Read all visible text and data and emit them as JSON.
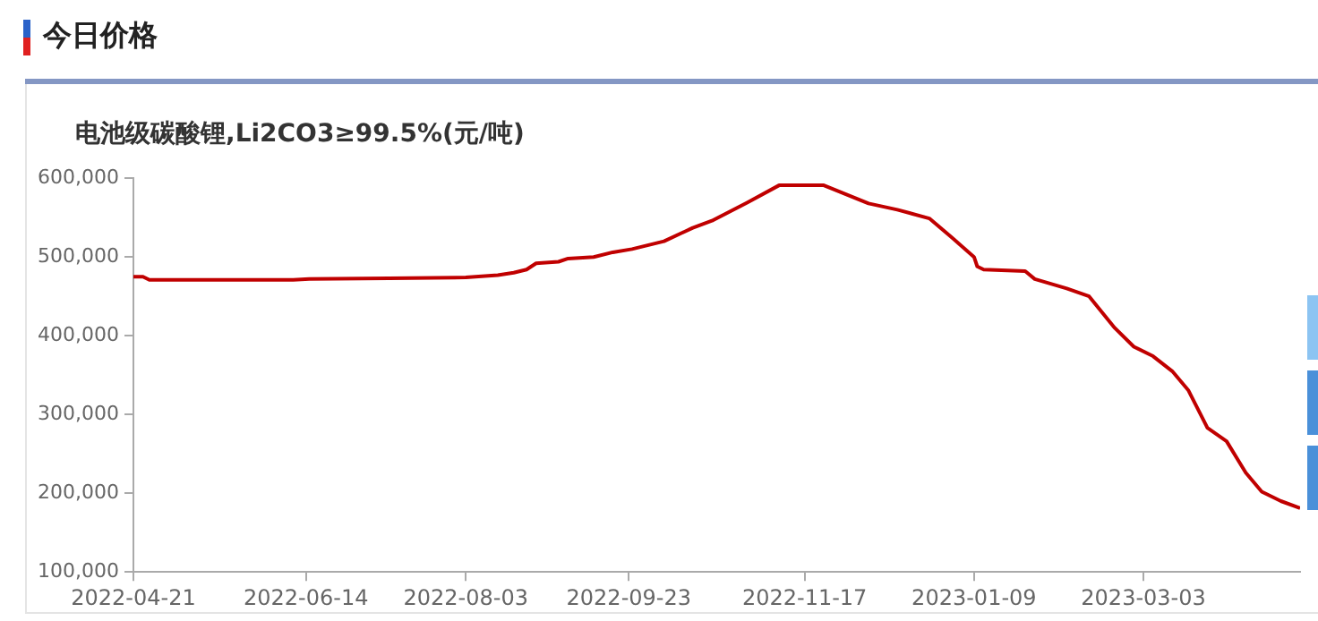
{
  "chart_data": {
    "type": "line",
    "title": "今日价格",
    "subtitle": "电池级碳酸锂,Li2CO3≥99.5%(元/吨)",
    "x": [
      "2022-04-21",
      "2022-04-24",
      "2022-04-26",
      "2022-06-10",
      "2022-06-15",
      "2022-07-10",
      "2022-08-03",
      "2022-08-13",
      "2022-08-18",
      "2022-08-22",
      "2022-08-25",
      "2022-09-01",
      "2022-09-04",
      "2022-09-12",
      "2022-09-18",
      "2022-09-24",
      "2022-10-04",
      "2022-10-13",
      "2022-10-19",
      "2022-10-30",
      "2022-11-09",
      "2022-11-23",
      "2022-12-07",
      "2022-12-16",
      "2022-12-26",
      "2023-01-02",
      "2023-01-09",
      "2023-01-10",
      "2023-01-12",
      "2023-01-25",
      "2023-01-28",
      "2023-02-07",
      "2023-02-14",
      "2023-02-22",
      "2023-02-28",
      "2023-03-06",
      "2023-03-12",
      "2023-03-17",
      "2023-03-23",
      "2023-03-29",
      "2023-04-04",
      "2023-04-09",
      "2023-04-15",
      "2023-04-21"
    ],
    "series": [
      {
        "color": "#c00000",
        "values": [
          475000,
          475000,
          471000,
          471000,
          472000,
          473000,
          474000,
          477000,
          480000,
          484000,
          492000,
          494000,
          498000,
          500000,
          506000,
          510000,
          520000,
          537000,
          546000,
          569000,
          591000,
          591000,
          568000,
          560000,
          549000,
          525000,
          500000,
          488000,
          484000,
          482000,
          472000,
          460000,
          450000,
          410000,
          386000,
          374000,
          355000,
          331000,
          283000,
          266000,
          226000,
          202000,
          190000,
          181000
        ]
      }
    ],
    "xlim": [
      "2022-04-21",
      "2023-04-21"
    ],
    "xticks": [
      "2022-04-21",
      "2022-06-14",
      "2022-08-03",
      "2022-09-23",
      "2022-11-17",
      "2023-01-09",
      "2023-03-03"
    ],
    "ylim": [
      100000,
      600000
    ],
    "yticks": [
      {
        "value": 100000,
        "label": "100,000"
      },
      {
        "value": 200000,
        "label": "200,000"
      },
      {
        "value": 300000,
        "label": "300,000"
      },
      {
        "value": 400000,
        "label": "400,000"
      },
      {
        "value": 500000,
        "label": "500,000"
      },
      {
        "value": 600000,
        "label": "600,000"
      }
    ],
    "grid": false,
    "legend": false,
    "marker": "none",
    "line_style": "solid"
  }
}
